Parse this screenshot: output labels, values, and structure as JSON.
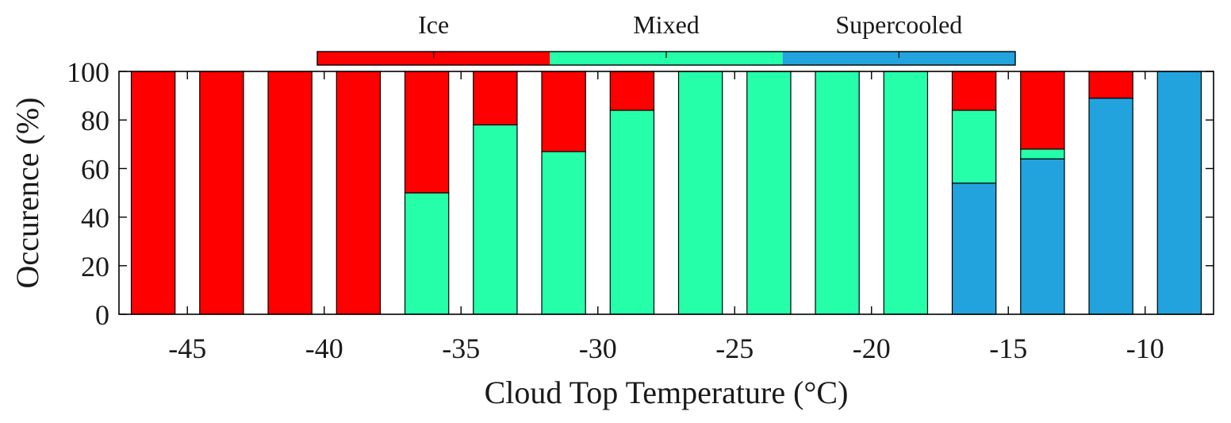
{
  "chart_data": {
    "type": "bar",
    "stacked": true,
    "xlabel": "Cloud Top Temperature (°C)",
    "ylabel": "Occurence (%)",
    "ylim": [
      0,
      100
    ],
    "xlim": [
      -47.5,
      -7.5
    ],
    "yticks": [
      0,
      20,
      40,
      60,
      80,
      100
    ],
    "xticks": [
      -45,
      -40,
      -35,
      -30,
      -25,
      -20,
      -15,
      -10
    ],
    "xtick_labels": [
      "-45",
      "-40",
      "-35",
      "-30",
      "-25",
      "-20",
      "-15",
      "-10"
    ],
    "ytick_labels": [
      "0",
      "20",
      "40",
      "60",
      "80",
      "100"
    ],
    "bar_width": 2,
    "legend_position": "top",
    "x": [
      -46.25,
      -43.75,
      -41.25,
      -38.75,
      -36.25,
      -33.75,
      -31.25,
      -28.75,
      -26.25,
      -23.75,
      -21.25,
      -18.75,
      -16.25,
      -13.75,
      -11.25,
      -8.75
    ],
    "series": [
      {
        "name": "Supercooled",
        "color": "#22a3de",
        "values": [
          0,
          0,
          0,
          0,
          0,
          0,
          0,
          0,
          0,
          0,
          0,
          0,
          54,
          64,
          89,
          100
        ]
      },
      {
        "name": "Mixed",
        "color": "#25ffaa",
        "values": [
          0,
          0,
          0,
          0,
          50,
          78,
          67,
          84,
          100,
          100,
          100,
          100,
          30,
          4,
          0,
          0
        ]
      },
      {
        "name": "Ice",
        "color": "#ff0000",
        "values": [
          100,
          100,
          100,
          100,
          50,
          22,
          33,
          16,
          0,
          0,
          0,
          0,
          16,
          32,
          11,
          0
        ]
      }
    ],
    "legend": [
      {
        "name": "Ice",
        "color": "#ff0000"
      },
      {
        "name": "Mixed",
        "color": "#25ffaa"
      },
      {
        "name": "Supercooled",
        "color": "#22a3de"
      }
    ]
  }
}
